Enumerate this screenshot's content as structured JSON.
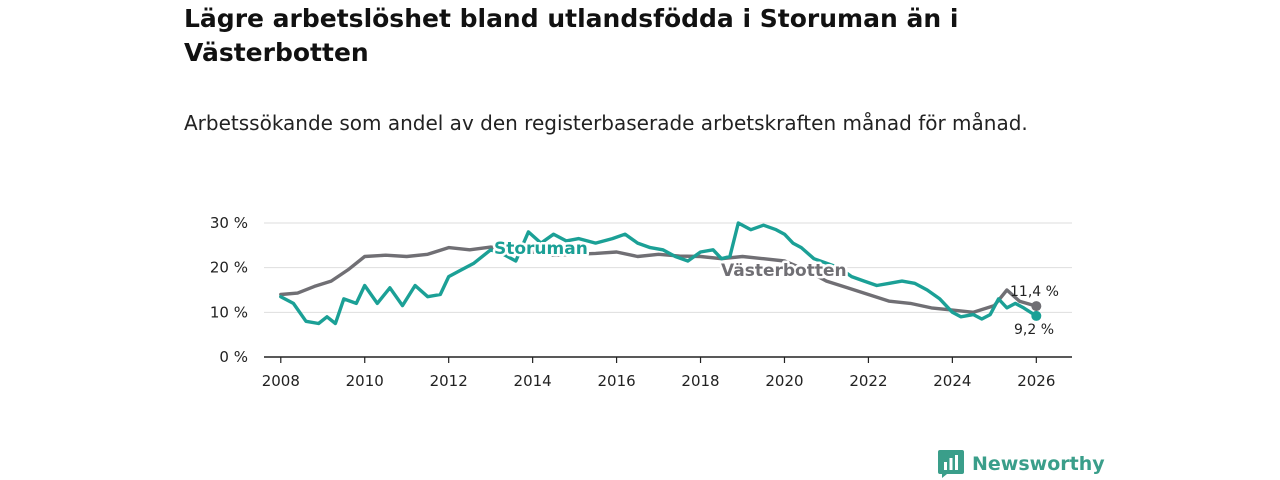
{
  "title": "Lägre arbetslöshet bland utlandsfödda i Storuman än i Västerbotten",
  "subtitle": "Arbetssökande som andel av den registerbaserade arbetskraften månad för månad.",
  "brand": {
    "name": "Newsworthy",
    "color": "#3a9e8a"
  },
  "chart_data": {
    "type": "line",
    "title": "Lägre arbetslöshet bland utlandsfödda i Storuman än i Västerbotten",
    "subtitle": "Arbetssökande som andel av den registerbaserade arbetskraften månad för månad.",
    "xlabel": "",
    "ylabel": "",
    "xlim": [
      2007.6,
      2026.85
    ],
    "ylim": [
      0,
      30
    ],
    "x_ticks": [
      2008,
      2010,
      2012,
      2014,
      2016,
      2018,
      2020,
      2022,
      2024,
      2026
    ],
    "x_tick_labels": [
      "2008",
      "2010",
      "2012",
      "2014",
      "2016",
      "2018",
      "2020",
      "2022",
      "2024",
      "2026"
    ],
    "y_ticks": [
      0,
      10,
      20,
      30
    ],
    "y_tick_labels": [
      "0 %",
      "10 %",
      "20 %",
      "30 %"
    ],
    "grid": true,
    "series": [
      {
        "name": "Västerbotten",
        "color": "#706f74",
        "end_label": "11,4 %",
        "end_value": 11.4,
        "x": [
          2008.0,
          2008.4,
          2008.8,
          2009.2,
          2009.6,
          2010.0,
          2010.5,
          2011.0,
          2011.5,
          2012.0,
          2012.5,
          2013.0,
          2013.5,
          2014.0,
          2014.5,
          2015.0,
          2015.5,
          2016.0,
          2016.5,
          2017.0,
          2017.5,
          2018.0,
          2018.5,
          2019.0,
          2019.5,
          2020.0,
          2020.5,
          2021.0,
          2021.5,
          2022.0,
          2022.5,
          2023.0,
          2023.5,
          2024.0,
          2024.5,
          2025.0,
          2025.3,
          2025.6,
          2026.0
        ],
        "values": [
          14.0,
          14.3,
          15.8,
          17.0,
          19.5,
          22.5,
          22.8,
          22.5,
          23.0,
          24.5,
          24.0,
          24.6,
          24.0,
          23.5,
          22.8,
          23.0,
          23.2,
          23.5,
          22.5,
          23.0,
          22.6,
          22.5,
          22.0,
          22.5,
          22.0,
          21.5,
          19.5,
          17.0,
          15.5,
          14.0,
          12.5,
          12.0,
          11.0,
          10.5,
          10.0,
          11.5,
          15.0,
          12.5,
          11.4
        ]
      },
      {
        "name": "Storuman",
        "color": "#1ba096",
        "end_label": "9,2 %",
        "end_value": 9.2,
        "x": [
          2008.0,
          2008.3,
          2008.6,
          2008.9,
          2009.1,
          2009.3,
          2009.5,
          2009.8,
          2010.0,
          2010.3,
          2010.6,
          2010.9,
          2011.2,
          2011.5,
          2011.8,
          2012.0,
          2012.3,
          2012.6,
          2013.0,
          2013.3,
          2013.6,
          2013.9,
          2014.2,
          2014.5,
          2014.8,
          2015.1,
          2015.5,
          2015.9,
          2016.2,
          2016.5,
          2016.8,
          2017.1,
          2017.4,
          2017.7,
          2018.0,
          2018.3,
          2018.5,
          2018.7,
          2018.9,
          2019.2,
          2019.5,
          2019.8,
          2020.0,
          2020.2,
          2020.4,
          2020.7,
          2021.0,
          2021.3,
          2021.6,
          2021.9,
          2022.2,
          2022.5,
          2022.8,
          2023.1,
          2023.4,
          2023.7,
          2024.0,
          2024.2,
          2024.5,
          2024.7,
          2024.9,
          2025.1,
          2025.3,
          2025.5,
          2025.7,
          2026.0
        ],
        "values": [
          13.5,
          12.0,
          8.0,
          7.5,
          9.0,
          7.5,
          13.0,
          12.0,
          16.0,
          12.0,
          15.5,
          11.5,
          16.0,
          13.5,
          14.0,
          18.0,
          19.5,
          21.0,
          24.0,
          23.0,
          21.5,
          28.0,
          25.5,
          27.5,
          26.0,
          26.5,
          25.5,
          26.5,
          27.5,
          25.5,
          24.5,
          24.0,
          22.5,
          21.5,
          23.5,
          24.0,
          22.0,
          22.5,
          30.0,
          28.5,
          29.5,
          28.5,
          27.5,
          25.5,
          24.5,
          22.0,
          21.0,
          20.0,
          18.0,
          17.0,
          16.0,
          16.5,
          17.0,
          16.5,
          15.0,
          13.0,
          10.0,
          9.0,
          9.5,
          8.5,
          9.5,
          13.0,
          11.0,
          12.0,
          11.0,
          9.2
        ]
      }
    ]
  }
}
